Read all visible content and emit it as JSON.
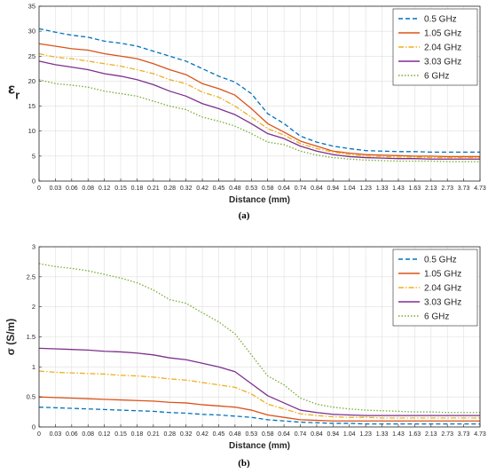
{
  "chart_data": [
    {
      "type": "line",
      "panel_label": "(a)",
      "xlabel": "Distance  (mm)",
      "ylabel_main": "ε",
      "ylabel_sub": "r",
      "ylim": [
        0,
        35
      ],
      "yticks": [
        0,
        5,
        10,
        15,
        20,
        25,
        30,
        35
      ],
      "grid": true,
      "legend_position": "top-right",
      "x": [
        "0",
        "0.03",
        "0.06",
        "0.08",
        "0.12",
        "0.15",
        "0.18",
        "0.21",
        "0.28",
        "0.32",
        "0.42",
        "0.45",
        "0.48",
        "0.53",
        "0.58",
        "0.64",
        "0.74",
        "0.84",
        "0.94",
        "1.04",
        "1.23",
        "1.33",
        "1.43",
        "1.63",
        "2.13",
        "2.73",
        "3.73",
        "4.73"
      ],
      "series": [
        {
          "name": "0.5 GHz",
          "color": "#0072BD",
          "dash": "dash",
          "values": [
            30.5,
            29.8,
            29.2,
            28.8,
            28.0,
            27.6,
            27.0,
            26.0,
            25.0,
            24.0,
            22.5,
            21.0,
            19.8,
            17.5,
            13.5,
            11.5,
            9.0,
            7.8,
            7.0,
            6.5,
            6.1,
            6.0,
            5.9,
            5.9,
            5.8,
            5.8,
            5.8,
            5.8
          ]
        },
        {
          "name": "1.05 GHz",
          "color": "#D95319",
          "dash": "solid",
          "values": [
            27.5,
            27.0,
            26.5,
            26.2,
            25.5,
            25.0,
            24.5,
            23.5,
            22.3,
            21.3,
            19.5,
            18.5,
            17.2,
            14.5,
            11.5,
            9.8,
            8.0,
            7.0,
            6.0,
            5.6,
            5.3,
            5.2,
            5.1,
            5.0,
            5.0,
            4.9,
            4.9,
            4.9
          ]
        },
        {
          "name": "2.04 GHz",
          "color": "#EDB120",
          "dash": "dashdot",
          "values": [
            25.5,
            24.8,
            24.5,
            24.0,
            23.5,
            23.0,
            22.3,
            21.5,
            20.3,
            19.5,
            17.8,
            16.8,
            15.0,
            12.8,
            10.5,
            9.2,
            7.5,
            6.5,
            5.8,
            5.3,
            5.0,
            4.9,
            4.8,
            4.8,
            4.7,
            4.7,
            4.7,
            4.7
          ]
        },
        {
          "name": "3.03 GHz",
          "color": "#7E2F8E",
          "dash": "solid",
          "values": [
            24.0,
            23.3,
            22.8,
            22.3,
            21.5,
            21.0,
            20.3,
            19.3,
            18.0,
            17.0,
            15.5,
            14.5,
            13.3,
            11.5,
            9.5,
            8.5,
            7.0,
            6.0,
            5.3,
            4.9,
            4.7,
            4.6,
            4.5,
            4.5,
            4.4,
            4.4,
            4.4,
            4.4
          ]
        },
        {
          "name": "6 GHz",
          "color": "#77AC30",
          "dash": "dot",
          "values": [
            20.3,
            19.5,
            19.2,
            18.8,
            18.0,
            17.5,
            17.0,
            16.0,
            15.0,
            14.3,
            12.8,
            12.0,
            11.0,
            9.5,
            7.8,
            7.3,
            6.0,
            5.2,
            4.7,
            4.4,
            4.2,
            4.1,
            4.0,
            4.0,
            4.0,
            3.9,
            3.9,
            3.9
          ]
        }
      ]
    },
    {
      "type": "line",
      "panel_label": "(b)",
      "xlabel": "Distance  (mm)",
      "ylabel": "σ (S/m)",
      "ylim": [
        0,
        3
      ],
      "yticks": [
        0,
        0.5,
        1,
        1.5,
        2,
        2.5,
        3
      ],
      "grid": true,
      "legend_position": "top-right",
      "x": [
        "0",
        "0.03",
        "0.06",
        "0.08",
        "0.12",
        "0.15",
        "0.18",
        "0.21",
        "0.28",
        "0.32",
        "0.42",
        "0.45",
        "0.48",
        "0.53",
        "0.58",
        "0.64",
        "0.74",
        "0.84",
        "0.94",
        "1.04",
        "1.23",
        "1.33",
        "1.43",
        "1.63",
        "2.13",
        "2.73",
        "3.73",
        "4.73"
      ],
      "series": [
        {
          "name": "0.5 GHz",
          "color": "#0072BD",
          "dash": "dash",
          "values": [
            0.33,
            0.32,
            0.31,
            0.3,
            0.29,
            0.28,
            0.27,
            0.26,
            0.24,
            0.23,
            0.21,
            0.2,
            0.18,
            0.16,
            0.12,
            0.1,
            0.08,
            0.07,
            0.06,
            0.06,
            0.05,
            0.05,
            0.05,
            0.05,
            0.05,
            0.05,
            0.05,
            0.05
          ]
        },
        {
          "name": "1.05 GHz",
          "color": "#D95319",
          "dash": "solid",
          "values": [
            0.5,
            0.49,
            0.48,
            0.47,
            0.46,
            0.45,
            0.44,
            0.43,
            0.41,
            0.4,
            0.37,
            0.35,
            0.33,
            0.28,
            0.2,
            0.16,
            0.12,
            0.11,
            0.1,
            0.1,
            0.1,
            0.1,
            0.1,
            0.1,
            0.1,
            0.1,
            0.1,
            0.1
          ]
        },
        {
          "name": "2.04 GHz",
          "color": "#EDB120",
          "dash": "dashdot",
          "values": [
            0.93,
            0.91,
            0.9,
            0.89,
            0.88,
            0.86,
            0.85,
            0.83,
            0.8,
            0.78,
            0.74,
            0.7,
            0.66,
            0.55,
            0.38,
            0.3,
            0.22,
            0.19,
            0.17,
            0.16,
            0.16,
            0.15,
            0.15,
            0.15,
            0.15,
            0.15,
            0.15,
            0.15
          ]
        },
        {
          "name": "3.03 GHz",
          "color": "#7E2F8E",
          "dash": "solid",
          "values": [
            1.31,
            1.3,
            1.29,
            1.28,
            1.26,
            1.25,
            1.23,
            1.2,
            1.15,
            1.12,
            1.06,
            1.0,
            0.92,
            0.72,
            0.52,
            0.4,
            0.28,
            0.24,
            0.21,
            0.2,
            0.19,
            0.19,
            0.19,
            0.19,
            0.19,
            0.19,
            0.19,
            0.19
          ]
        },
        {
          "name": "6 GHz",
          "color": "#77AC30",
          "dash": "dot",
          "values": [
            2.72,
            2.67,
            2.64,
            2.6,
            2.54,
            2.48,
            2.4,
            2.28,
            2.12,
            2.06,
            1.9,
            1.75,
            1.55,
            1.2,
            0.85,
            0.7,
            0.48,
            0.38,
            0.33,
            0.3,
            0.28,
            0.27,
            0.26,
            0.25,
            0.25,
            0.24,
            0.24,
            0.24
          ]
        }
      ]
    }
  ]
}
